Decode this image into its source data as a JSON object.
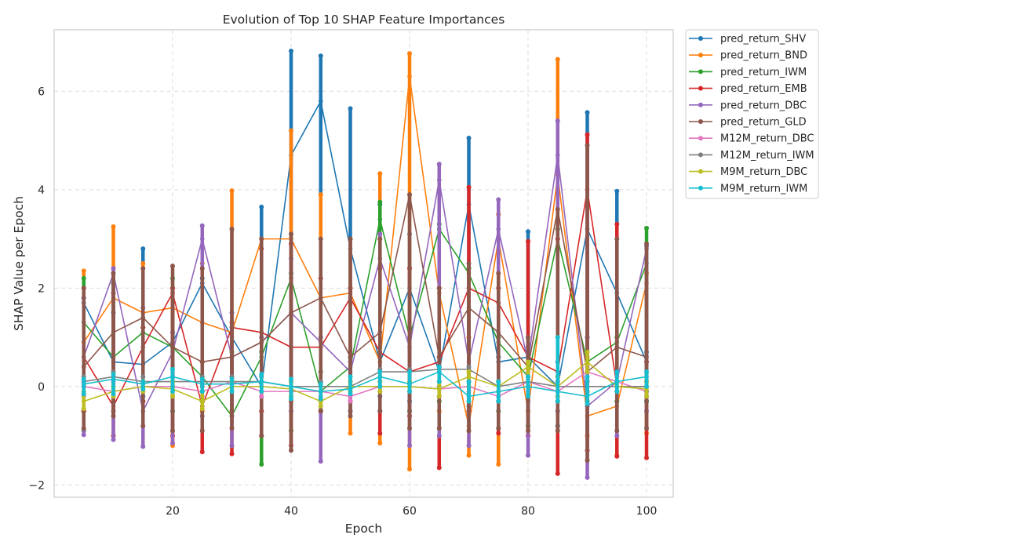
{
  "chart_data": {
    "type": "line",
    "title": "Evolution of Top 10 SHAP Feature Importances",
    "xlabel": "Epoch",
    "ylabel": "SHAP Value per Epoch",
    "xlim": [
      0,
      104.5
    ],
    "ylim": [
      -2.25,
      7.25
    ],
    "xticks": [
      20,
      40,
      60,
      80,
      100
    ],
    "yticks": [
      -2,
      0,
      2,
      4,
      6
    ],
    "grid": true,
    "legend_position": "outside-upper-right",
    "epochs": [
      5,
      10,
      15,
      20,
      25,
      30,
      35,
      40,
      45,
      50,
      55,
      60,
      65,
      70,
      75,
      80,
      85,
      90,
      95,
      100
    ],
    "series": [
      {
        "name": "pred_return_SHV",
        "color": "#1f77b4",
        "values": [
          1.7,
          0.5,
          0.45,
          0.9,
          2.1,
          1.0,
          0.0,
          4.7,
          5.8,
          2.8,
          0.5,
          2.0,
          0.3,
          3.7,
          0.5,
          0.6,
          0.0,
          3.2,
          1.9,
          0.5
        ],
        "ranges": [
          [
            -0.5,
            1.8
          ],
          [
            -0.5,
            1.5
          ],
          [
            -0.2,
            2.8
          ],
          [
            -0.5,
            1.1
          ],
          [
            -0.3,
            2.2
          ],
          [
            -0.5,
            1.2
          ],
          [
            -0.2,
            3.65
          ],
          [
            -0.3,
            6.82
          ],
          [
            -0.3,
            6.72
          ],
          [
            -0.3,
            5.65
          ],
          [
            -0.2,
            3.7
          ],
          [
            -0.3,
            3.1
          ],
          [
            -0.2,
            0.4
          ],
          [
            -0.4,
            5.05
          ],
          [
            -0.2,
            0.6
          ],
          [
            -0.3,
            3.15
          ],
          [
            -0.8,
            0.5
          ],
          [
            -0.4,
            5.57
          ],
          [
            -0.3,
            3.97
          ],
          [
            -0.3,
            0.7
          ]
        ]
      },
      {
        "name": "pred_return_BND",
        "color": "#ff7f0e",
        "values": [
          0.9,
          1.8,
          1.5,
          1.6,
          1.3,
          1.1,
          3.0,
          3.0,
          1.8,
          1.9,
          0.5,
          6.3,
          1.9,
          -0.8,
          3.0,
          -0.5,
          4.3,
          -0.6,
          -0.4,
          2.1
        ],
        "ranges": [
          [
            -0.5,
            2.35
          ],
          [
            -0.5,
            3.25
          ],
          [
            -0.3,
            2.5
          ],
          [
            -1.2,
            2.0
          ],
          [
            -0.5,
            2.5
          ],
          [
            -0.5,
            3.98
          ],
          [
            -0.5,
            3.0
          ],
          [
            -0.3,
            5.2
          ],
          [
            -0.3,
            3.9
          ],
          [
            -0.95,
            3.0
          ],
          [
            -1.15,
            4.33
          ],
          [
            -1.68,
            6.77
          ],
          [
            -0.5,
            2.0
          ],
          [
            -1.4,
            1.0
          ],
          [
            -1.58,
            3.5
          ],
          [
            -0.5,
            0.5
          ],
          [
            -0.3,
            6.65
          ],
          [
            -1.0,
            0.6
          ],
          [
            -1.4,
            0.2
          ],
          [
            -0.95,
            2.3
          ]
        ]
      },
      {
        "name": "pred_return_IWM",
        "color": "#2ca02c",
        "values": [
          1.3,
          0.6,
          1.1,
          0.8,
          0.2,
          -0.6,
          0.6,
          2.2,
          -0.1,
          0.4,
          3.4,
          1.0,
          3.2,
          2.3,
          0.9,
          0.2,
          3.0,
          0.5,
          0.9,
          2.5
        ],
        "ranges": [
          [
            -0.9,
            2.2
          ],
          [
            -0.3,
            2.1
          ],
          [
            -0.3,
            1.2
          ],
          [
            -0.5,
            2.2
          ],
          [
            -0.3,
            0.5
          ],
          [
            -0.6,
            0.7
          ],
          [
            -1.58,
            0.7
          ],
          [
            -0.9,
            2.3
          ],
          [
            -0.5,
            0.3
          ],
          [
            -0.5,
            0.6
          ],
          [
            -0.5,
            3.75
          ],
          [
            -0.5,
            1.2
          ],
          [
            -0.3,
            3.3
          ],
          [
            -0.5,
            2.4
          ],
          [
            -0.5,
            1.0
          ],
          [
            -0.8,
            0.6
          ],
          [
            -0.3,
            3.2
          ],
          [
            -0.3,
            1.0
          ],
          [
            -0.3,
            1.0
          ],
          [
            -0.3,
            3.22
          ]
        ]
      },
      {
        "name": "pred_return_EMB",
        "color": "#d62728",
        "values": [
          0.6,
          -0.4,
          0.8,
          1.9,
          -0.4,
          1.2,
          1.1,
          0.8,
          0.8,
          1.8,
          0.7,
          0.3,
          0.5,
          2.0,
          1.7,
          0.6,
          0.3,
          4.0,
          0.0,
          0.0
        ],
        "ranges": [
          [
            -0.5,
            2.0
          ],
          [
            -1.0,
            1.9
          ],
          [
            -0.3,
            1.2
          ],
          [
            -1.0,
            2.0
          ],
          [
            -1.33,
            0.5
          ],
          [
            -1.37,
            1.3
          ],
          [
            -0.5,
            2.8
          ],
          [
            -1.2,
            2.9
          ],
          [
            -0.5,
            2.2
          ],
          [
            -0.3,
            2.0
          ],
          [
            -0.95,
            2.4
          ],
          [
            -0.6,
            2.4
          ],
          [
            -1.65,
            0.6
          ],
          [
            -0.5,
            4.05
          ],
          [
            -0.95,
            2.0
          ],
          [
            -1.0,
            2.95
          ],
          [
            -1.77,
            3.0
          ],
          [
            -1.3,
            5.12
          ],
          [
            -1.42,
            3.3
          ],
          [
            -1.45,
            0.5
          ]
        ]
      },
      {
        "name": "pred_return_DBC",
        "color": "#9467bd",
        "values": [
          0.6,
          2.3,
          -0.5,
          0.7,
          3.0,
          0.6,
          0.9,
          1.5,
          0.9,
          0.3,
          2.6,
          0.8,
          4.2,
          0.5,
          3.2,
          0.5,
          4.7,
          -0.4,
          0.1,
          2.8
        ],
        "ranges": [
          [
            -0.98,
            1.8
          ],
          [
            -1.08,
            2.4
          ],
          [
            -1.22,
            1.6
          ],
          [
            -1.15,
            1.1
          ],
          [
            -0.6,
            3.27
          ],
          [
            -1.2,
            1.5
          ],
          [
            -1.0,
            1.0
          ],
          [
            -0.5,
            2.6
          ],
          [
            -1.52,
            1.0
          ],
          [
            -0.5,
            0.5
          ],
          [
            -0.5,
            3.1
          ],
          [
            -1.2,
            1.0
          ],
          [
            -1.0,
            4.52
          ],
          [
            -1.2,
            0.7
          ],
          [
            -0.3,
            3.8
          ],
          [
            -1.4,
            0.8
          ],
          [
            -0.5,
            5.4
          ],
          [
            -1.85,
            1.0
          ],
          [
            -1.0,
            0.3
          ],
          [
            -0.5,
            2.85
          ]
        ]
      },
      {
        "name": "pred_return_GLD",
        "color": "#8c564b",
        "values": [
          0.4,
          1.1,
          1.4,
          0.8,
          0.5,
          0.6,
          0.9,
          1.5,
          1.8,
          0.6,
          1.1,
          3.9,
          0.6,
          1.6,
          1.1,
          0.4,
          3.6,
          0.3,
          0.8,
          0.6
        ],
        "ranges": [
          [
            -0.85,
            2.0
          ],
          [
            -0.6,
            2.3
          ],
          [
            -0.8,
            2.4
          ],
          [
            -0.9,
            2.45
          ],
          [
            -0.9,
            2.4
          ],
          [
            -0.85,
            3.2
          ],
          [
            -1.0,
            3.0
          ],
          [
            -1.3,
            3.1
          ],
          [
            -0.5,
            3.0
          ],
          [
            -0.6,
            3.0
          ],
          [
            -0.5,
            3.0
          ],
          [
            -0.85,
            3.9
          ],
          [
            -0.85,
            2.0
          ],
          [
            -0.9,
            2.5
          ],
          [
            -0.85,
            2.3
          ],
          [
            -0.9,
            1.0
          ],
          [
            -0.9,
            3.6
          ],
          [
            -1.5,
            4.9
          ],
          [
            -0.9,
            3.0
          ],
          [
            -0.85,
            2.9
          ]
        ]
      },
      {
        "name": "M12M_return_DBC",
        "color": "#e377c2",
        "values": [
          0.0,
          -0.1,
          0.0,
          0.0,
          -0.1,
          0.1,
          -0.1,
          -0.1,
          -0.1,
          -0.2,
          0.0,
          0.0,
          -0.05,
          0.0,
          -0.2,
          0.1,
          -0.1,
          0.3,
          0.1,
          -0.1
        ],
        "ranges": [
          [
            -0.2,
            0.1
          ],
          [
            -0.2,
            0.1
          ],
          [
            -0.1,
            0.1
          ],
          [
            -0.2,
            0.1
          ],
          [
            -0.2,
            0.1
          ],
          [
            -0.1,
            0.2
          ],
          [
            -0.2,
            0.1
          ],
          [
            -0.2,
            0.1
          ],
          [
            -0.2,
            0.1
          ],
          [
            -0.3,
            0.1
          ],
          [
            -0.1,
            0.1
          ],
          [
            -0.1,
            0.1
          ],
          [
            -0.2,
            0.1
          ],
          [
            -0.1,
            0.1
          ],
          [
            -0.3,
            0.1
          ],
          [
            -0.1,
            0.3
          ],
          [
            -0.2,
            0.2
          ],
          [
            -0.1,
            0.4
          ],
          [
            -0.1,
            0.2
          ],
          [
            -0.2,
            0.1
          ]
        ]
      },
      {
        "name": "M12M_return_IWM",
        "color": "#7f7f7f",
        "values": [
          0.1,
          0.2,
          0.1,
          0.1,
          0.1,
          0.1,
          0.1,
          0.0,
          0.0,
          0.0,
          0.3,
          0.3,
          0.35,
          0.35,
          0.0,
          0.1,
          0.0,
          0.0,
          0.0,
          0.0
        ],
        "ranges": [
          [
            0.0,
            0.2
          ],
          [
            0.0,
            0.3
          ],
          [
            0.0,
            0.2
          ],
          [
            0.0,
            0.2
          ],
          [
            0.0,
            0.2
          ],
          [
            0.0,
            0.2
          ],
          [
            0.0,
            0.2
          ],
          [
            -0.1,
            0.1
          ],
          [
            -0.1,
            0.1
          ],
          [
            -0.1,
            0.1
          ],
          [
            0.0,
            0.35
          ],
          [
            0.0,
            0.35
          ],
          [
            0.0,
            0.4
          ],
          [
            0.0,
            0.4
          ],
          [
            -0.1,
            0.1
          ],
          [
            0.0,
            0.2
          ],
          [
            -0.1,
            0.1
          ],
          [
            -0.1,
            0.1
          ],
          [
            -0.1,
            0.1
          ],
          [
            -0.1,
            0.1
          ]
        ]
      },
      {
        "name": "M9M_return_DBC",
        "color": "#bcbd22",
        "values": [
          -0.3,
          -0.1,
          0.0,
          -0.05,
          -0.3,
          0.0,
          0.0,
          -0.05,
          -0.3,
          0.0,
          0.0,
          0.0,
          -0.05,
          0.2,
          0.0,
          0.4,
          0.0,
          0.5,
          0.0,
          -0.05
        ],
        "ranges": [
          [
            -0.45,
            -0.1
          ],
          [
            -0.2,
            0.0
          ],
          [
            -0.1,
            0.1
          ],
          [
            -0.2,
            0.1
          ],
          [
            -0.45,
            -0.1
          ],
          [
            -0.1,
            0.1
          ],
          [
            -0.1,
            0.1
          ],
          [
            -0.2,
            0.1
          ],
          [
            -0.4,
            -0.1
          ],
          [
            -0.1,
            0.1
          ],
          [
            -0.1,
            0.1
          ],
          [
            -0.1,
            0.1
          ],
          [
            -0.2,
            0.1
          ],
          [
            0.0,
            0.3
          ],
          [
            -0.1,
            0.1
          ],
          [
            0.2,
            0.5
          ],
          [
            -0.2,
            0.2
          ],
          [
            0.3,
            0.7
          ],
          [
            -0.1,
            0.1
          ],
          [
            -0.2,
            0.1
          ]
        ]
      },
      {
        "name": "M9M_return_IWM",
        "color": "#17becf",
        "values": [
          0.05,
          0.15,
          0.05,
          0.2,
          0.05,
          0.05,
          0.1,
          0.0,
          -0.1,
          -0.05,
          0.2,
          0.05,
          0.3,
          -0.2,
          -0.1,
          0.0,
          -0.1,
          -0.2,
          0.1,
          0.2
        ],
        "ranges": [
          [
            -0.15,
            0.15
          ],
          [
            -0.15,
            0.25
          ],
          [
            -0.05,
            0.1
          ],
          [
            -0.1,
            0.35
          ],
          [
            -0.1,
            0.15
          ],
          [
            -0.1,
            0.15
          ],
          [
            -0.1,
            0.25
          ],
          [
            -0.25,
            0.15
          ],
          [
            -0.25,
            0.05
          ],
          [
            -0.15,
            0.2
          ],
          [
            0.0,
            0.3
          ],
          [
            -0.1,
            0.3
          ],
          [
            0.1,
            0.4
          ],
          [
            -0.3,
            0.1
          ],
          [
            -0.3,
            0.1
          ],
          [
            -0.2,
            0.2
          ],
          [
            -0.3,
            1.0
          ],
          [
            -0.35,
            0.2
          ],
          [
            -0.1,
            0.3
          ],
          [
            0.0,
            0.3
          ]
        ]
      }
    ]
  }
}
